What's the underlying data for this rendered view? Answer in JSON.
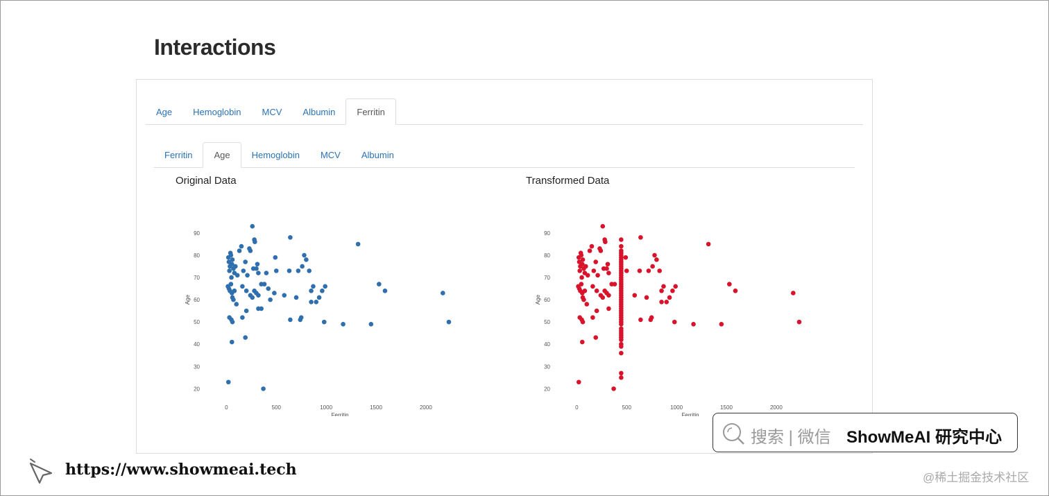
{
  "page_title": "Interactions",
  "outer_tabs": [
    {
      "label": "Age",
      "active": false
    },
    {
      "label": "Hemoglobin",
      "active": false
    },
    {
      "label": "MCV",
      "active": false
    },
    {
      "label": "Albumin",
      "active": false
    },
    {
      "label": "Ferritin",
      "active": true
    }
  ],
  "inner_tabs": [
    {
      "label": "Ferritin",
      "active": false
    },
    {
      "label": "Age",
      "active": true
    },
    {
      "label": "Hemoglobin",
      "active": false
    },
    {
      "label": "MCV",
      "active": false
    },
    {
      "label": "Albumin",
      "active": false
    }
  ],
  "colors": {
    "original": "#2f6fad",
    "transformed": "#d8142c",
    "link": "#2a72b5"
  },
  "chart_data": [
    {
      "type": "scatter",
      "title": "Original Data",
      "xlabel": "Ferritin",
      "ylabel": "Age",
      "xticks": [
        0,
        500,
        1000,
        1500,
        2000
      ],
      "yticks": [
        20,
        30,
        40,
        50,
        60,
        70,
        80,
        90
      ],
      "xlim": [
        -100,
        2300
      ],
      "ylim": [
        17,
        94
      ],
      "points": [
        [
          20,
          79
        ],
        [
          25,
          77
        ],
        [
          30,
          73
        ],
        [
          35,
          75
        ],
        [
          40,
          81
        ],
        [
          45,
          80
        ],
        [
          50,
          70
        ],
        [
          55,
          76
        ],
        [
          60,
          78
        ],
        [
          70,
          74
        ],
        [
          80,
          72
        ],
        [
          90,
          75
        ],
        [
          110,
          71
        ],
        [
          130,
          82
        ],
        [
          150,
          84
        ],
        [
          170,
          73
        ],
        [
          190,
          77
        ],
        [
          210,
          71
        ],
        [
          230,
          83
        ],
        [
          240,
          82
        ],
        [
          260,
          93
        ],
        [
          280,
          87
        ],
        [
          285,
          86
        ],
        [
          270,
          74
        ],
        [
          300,
          74
        ],
        [
          310,
          76
        ],
        [
          320,
          72
        ],
        [
          15,
          66
        ],
        [
          25,
          65
        ],
        [
          35,
          64
        ],
        [
          45,
          67
        ],
        [
          55,
          63
        ],
        [
          60,
          61
        ],
        [
          70,
          60
        ],
        [
          80,
          64
        ],
        [
          100,
          58
        ],
        [
          160,
          66
        ],
        [
          200,
          64
        ],
        [
          240,
          62
        ],
        [
          260,
          61
        ],
        [
          280,
          64
        ],
        [
          300,
          63
        ],
        [
          320,
          62
        ],
        [
          350,
          67
        ],
        [
          380,
          67
        ],
        [
          400,
          72
        ],
        [
          420,
          65
        ],
        [
          440,
          60
        ],
        [
          480,
          63
        ],
        [
          490,
          79
        ],
        [
          500,
          73
        ],
        [
          580,
          62
        ],
        [
          630,
          73
        ],
        [
          640,
          88
        ],
        [
          700,
          61
        ],
        [
          720,
          73
        ],
        [
          760,
          75
        ],
        [
          780,
          80
        ],
        [
          800,
          78
        ],
        [
          830,
          73
        ],
        [
          850,
          64
        ],
        [
          870,
          66
        ],
        [
          900,
          59
        ],
        [
          930,
          61
        ],
        [
          960,
          64
        ],
        [
          990,
          66
        ],
        [
          850,
          59
        ],
        [
          320,
          56
        ],
        [
          350,
          56
        ],
        [
          200,
          55
        ],
        [
          30,
          52
        ],
        [
          50,
          51
        ],
        [
          60,
          50
        ],
        [
          160,
          52
        ],
        [
          640,
          51
        ],
        [
          740,
          51
        ],
        [
          750,
          52
        ],
        [
          980,
          50
        ],
        [
          1170,
          49
        ],
        [
          1450,
          49
        ],
        [
          1530,
          67
        ],
        [
          1590,
          64
        ],
        [
          1320,
          85
        ],
        [
          2170,
          63
        ],
        [
          2230,
          50
        ],
        [
          55,
          41
        ],
        [
          190,
          43
        ],
        [
          20,
          23
        ],
        [
          370,
          20
        ]
      ]
    },
    {
      "type": "scatter",
      "title": "Transformed Data",
      "xlabel": "Ferritin",
      "ylabel": "Age",
      "xticks": [
        0,
        500,
        1000,
        1500,
        2000
      ],
      "yticks": [
        20,
        30,
        40,
        50,
        60,
        70,
        80,
        90
      ],
      "xlim": [
        -100,
        2300
      ],
      "ylim": [
        17,
        94
      ],
      "points": [
        [
          20,
          79
        ],
        [
          25,
          77
        ],
        [
          30,
          73
        ],
        [
          35,
          75
        ],
        [
          40,
          81
        ],
        [
          45,
          80
        ],
        [
          50,
          70
        ],
        [
          55,
          76
        ],
        [
          60,
          78
        ],
        [
          70,
          74
        ],
        [
          80,
          72
        ],
        [
          90,
          75
        ],
        [
          110,
          71
        ],
        [
          130,
          82
        ],
        [
          150,
          84
        ],
        [
          170,
          73
        ],
        [
          190,
          77
        ],
        [
          210,
          71
        ],
        [
          230,
          83
        ],
        [
          240,
          82
        ],
        [
          260,
          93
        ],
        [
          280,
          87
        ],
        [
          285,
          86
        ],
        [
          270,
          74
        ],
        [
          300,
          74
        ],
        [
          310,
          76
        ],
        [
          320,
          72
        ],
        [
          15,
          66
        ],
        [
          25,
          65
        ],
        [
          35,
          64
        ],
        [
          45,
          67
        ],
        [
          55,
          63
        ],
        [
          60,
          61
        ],
        [
          70,
          60
        ],
        [
          80,
          64
        ],
        [
          100,
          58
        ],
        [
          160,
          66
        ],
        [
          200,
          64
        ],
        [
          240,
          62
        ],
        [
          260,
          61
        ],
        [
          280,
          64
        ],
        [
          300,
          63
        ],
        [
          320,
          62
        ],
        [
          350,
          67
        ],
        [
          380,
          67
        ],
        [
          490,
          79
        ],
        [
          500,
          73
        ],
        [
          580,
          62
        ],
        [
          630,
          73
        ],
        [
          640,
          88
        ],
        [
          700,
          61
        ],
        [
          720,
          73
        ],
        [
          760,
          75
        ],
        [
          780,
          80
        ],
        [
          800,
          78
        ],
        [
          830,
          73
        ],
        [
          850,
          64
        ],
        [
          870,
          66
        ],
        [
          900,
          59
        ],
        [
          930,
          61
        ],
        [
          960,
          64
        ],
        [
          990,
          66
        ],
        [
          850,
          59
        ],
        [
          320,
          56
        ],
        [
          200,
          55
        ],
        [
          30,
          52
        ],
        [
          50,
          51
        ],
        [
          60,
          50
        ],
        [
          160,
          52
        ],
        [
          640,
          51
        ],
        [
          740,
          51
        ],
        [
          750,
          52
        ],
        [
          980,
          50
        ],
        [
          1170,
          49
        ],
        [
          1450,
          49
        ],
        [
          1530,
          67
        ],
        [
          1590,
          64
        ],
        [
          1320,
          85
        ],
        [
          2170,
          63
        ],
        [
          2230,
          50
        ],
        [
          55,
          41
        ],
        [
          190,
          43
        ],
        [
          20,
          23
        ],
        [
          370,
          20
        ],
        [
          445,
          87
        ],
        [
          445,
          84
        ],
        [
          445,
          82
        ],
        [
          445,
          81
        ],
        [
          445,
          80
        ],
        [
          445,
          79
        ],
        [
          445,
          78
        ],
        [
          445,
          77
        ],
        [
          445,
          76
        ],
        [
          445,
          75
        ],
        [
          445,
          74
        ],
        [
          445,
          73
        ],
        [
          445,
          72
        ],
        [
          445,
          71
        ],
        [
          445,
          70
        ],
        [
          445,
          69
        ],
        [
          445,
          68
        ],
        [
          445,
          67
        ],
        [
          445,
          66
        ],
        [
          445,
          65
        ],
        [
          445,
          64
        ],
        [
          445,
          63
        ],
        [
          445,
          62
        ],
        [
          445,
          61
        ],
        [
          445,
          60
        ],
        [
          445,
          59
        ],
        [
          445,
          58
        ],
        [
          445,
          57
        ],
        [
          445,
          56
        ],
        [
          445,
          55
        ],
        [
          445,
          54
        ],
        [
          445,
          53
        ],
        [
          445,
          52
        ],
        [
          445,
          51
        ],
        [
          445,
          50
        ],
        [
          445,
          49
        ],
        [
          445,
          47
        ],
        [
          445,
          46
        ],
        [
          445,
          45
        ],
        [
          445,
          44
        ],
        [
          445,
          43
        ],
        [
          445,
          42
        ],
        [
          445,
          40
        ],
        [
          445,
          39
        ],
        [
          445,
          36
        ],
        [
          445,
          27
        ],
        [
          445,
          25
        ]
      ]
    }
  ],
  "badge": {
    "search_text": "搜索 | 微信",
    "brand": "ShowMeAI 研究中心"
  },
  "footer": {
    "url": "https://www.showmeai.tech",
    "watermark": "@稀土掘金技术社区"
  }
}
